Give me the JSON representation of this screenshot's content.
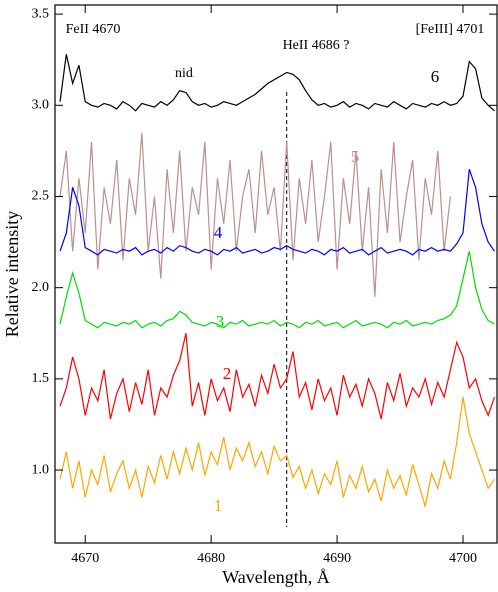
{
  "chart_data": {
    "type": "line",
    "xlabel": "Wavelength, Å",
    "ylabel": "Relative intensity",
    "annotations": [
      "FeII 4670",
      "nid",
      "HeII 4686 ?",
      "[FeIII] 4701"
    ],
    "vline": 4686,
    "xlim": [
      4667.6,
      4702.7
    ],
    "ylim": [
      0.6,
      3.55
    ],
    "xticks": [
      4670,
      4680,
      4690,
      4700
    ],
    "yticks": [
      {
        "value": 1.0,
        "label": "1.0"
      },
      1.5,
      {
        "value": 2.0,
        "label": "2.0"
      },
      2.5,
      {
        "value": 3.0,
        "label": "3.0"
      },
      3.5
    ],
    "x": [
      4668,
      4668.5,
      4669,
      4669.5,
      4670,
      4670.5,
      4671,
      4671.5,
      4672,
      4672.5,
      4673,
      4673.5,
      4674,
      4674.5,
      4675,
      4675.5,
      4676,
      4676.5,
      4677,
      4677.5,
      4678,
      4678.5,
      4679,
      4679.5,
      4680,
      4680.5,
      4681,
      4681.5,
      4682,
      4682.5,
      4683,
      4683.5,
      4684,
      4684.5,
      4685,
      4685.5,
      4686,
      4686.5,
      4687,
      4687.5,
      4688,
      4688.5,
      4689,
      4689.5,
      4690,
      4690.5,
      4691,
      4691.5,
      4692,
      4692.5,
      4693,
      4693.5,
      4694,
      4694.5,
      4695,
      4695.5,
      4696,
      4696.5,
      4697,
      4697.5,
      4698,
      4698.5,
      4699,
      4699.5,
      4700,
      4700.5,
      4701,
      4701.5,
      4702,
      4702.5
    ],
    "series": [
      {
        "name": "6",
        "color": "#000000",
        "values": [
          3.02,
          3.28,
          3.12,
          3.22,
          3.02,
          3.0,
          2.99,
          3.01,
          3.0,
          2.98,
          3.02,
          3.0,
          2.97,
          3.01,
          3.0,
          2.99,
          3.02,
          3.0,
          3.03,
          3.08,
          3.07,
          3.02,
          3.0,
          3.01,
          2.99,
          3.0,
          3.02,
          3.01,
          3.0,
          3.02,
          3.04,
          3.06,
          3.09,
          3.12,
          3.14,
          3.16,
          3.18,
          3.17,
          3.14,
          3.08,
          3.03,
          3.0,
          3.01,
          2.99,
          3.0,
          3.02,
          2.99,
          3.01,
          3.0,
          2.98,
          3.01,
          3.0,
          2.99,
          3.02,
          3.0,
          2.98,
          3.01,
          3.0,
          2.99,
          3.01,
          3.0,
          3.02,
          3.0,
          3.01,
          3.05,
          3.24,
          3.2,
          3.04,
          3.0,
          2.97
        ]
      },
      {
        "name": "5",
        "color": "#bc8f8f",
        "values": [
          2.5,
          2.75,
          2.2,
          2.6,
          2.3,
          2.8,
          2.1,
          2.55,
          2.35,
          2.7,
          2.15,
          2.6,
          2.4,
          2.85,
          2.2,
          2.5,
          2.05,
          2.65,
          2.3,
          2.75,
          2.2,
          2.55,
          2.4,
          2.8,
          2.1,
          2.6,
          2.35,
          2.7,
          2.2,
          2.5,
          2.65,
          2.3,
          2.75,
          2.4,
          2.55,
          2.2,
          2.8,
          2.15,
          2.6,
          2.35,
          2.7,
          2.25,
          2.5,
          2.8,
          2.1,
          2.6,
          2.35,
          2.75,
          2.2,
          2.55,
          1.95,
          2.65,
          2.3,
          2.8,
          2.25,
          2.5,
          2.7,
          2.15,
          2.6,
          2.4,
          2.75,
          2.2,
          2.5,
          null,
          null,
          null,
          null,
          null,
          null,
          null
        ]
      },
      {
        "name": "4",
        "color": "#0000ff",
        "values": [
          2.2,
          2.3,
          2.55,
          2.45,
          2.22,
          2.2,
          2.18,
          2.21,
          2.2,
          2.19,
          2.21,
          2.2,
          2.22,
          2.18,
          2.2,
          2.21,
          2.19,
          2.22,
          2.2,
          2.23,
          2.22,
          2.2,
          2.19,
          2.21,
          2.2,
          2.18,
          2.21,
          2.2,
          2.22,
          2.19,
          2.2,
          2.21,
          2.19,
          2.2,
          2.22,
          2.21,
          2.23,
          2.21,
          2.2,
          2.19,
          2.21,
          2.2,
          2.18,
          2.21,
          2.2,
          2.22,
          2.19,
          2.2,
          2.21,
          2.18,
          2.2,
          2.22,
          2.19,
          2.2,
          2.21,
          2.2,
          2.18,
          2.21,
          2.2,
          2.22,
          2.2,
          2.21,
          2.2,
          2.24,
          2.3,
          2.65,
          2.55,
          2.35,
          2.25,
          2.2
        ]
      },
      {
        "name": "3",
        "color": "#00dd00",
        "values": [
          1.8,
          1.95,
          2.08,
          1.97,
          1.82,
          1.8,
          1.78,
          1.81,
          1.8,
          1.79,
          1.81,
          1.8,
          1.82,
          1.78,
          1.8,
          1.81,
          1.79,
          1.82,
          1.83,
          1.87,
          1.85,
          1.81,
          1.8,
          1.79,
          1.81,
          1.8,
          1.78,
          1.81,
          1.8,
          1.82,
          1.79,
          1.8,
          1.81,
          1.8,
          1.82,
          1.79,
          1.81,
          1.8,
          1.78,
          1.81,
          1.8,
          1.82,
          1.79,
          1.8,
          1.81,
          1.78,
          1.8,
          1.82,
          1.79,
          1.8,
          1.81,
          1.8,
          1.78,
          1.81,
          1.8,
          1.82,
          1.79,
          1.8,
          1.81,
          1.8,
          1.82,
          1.83,
          1.85,
          1.9,
          2.05,
          2.2,
          2.0,
          1.88,
          1.82,
          1.8
        ]
      },
      {
        "name": "2",
        "color": "#ff0000",
        "values": [
          1.35,
          1.45,
          1.62,
          1.5,
          1.3,
          1.45,
          1.38,
          1.55,
          1.28,
          1.42,
          1.5,
          1.32,
          1.48,
          1.36,
          1.55,
          1.3,
          1.45,
          1.4,
          1.52,
          1.6,
          1.75,
          1.35,
          1.48,
          1.3,
          1.5,
          1.38,
          1.45,
          1.32,
          1.55,
          1.4,
          1.47,
          1.35,
          1.52,
          1.42,
          1.58,
          1.45,
          1.5,
          1.65,
          1.4,
          1.48,
          1.33,
          1.5,
          1.38,
          1.45,
          1.3,
          1.52,
          1.4,
          1.47,
          1.35,
          1.5,
          1.42,
          1.28,
          1.48,
          1.38,
          1.53,
          1.35,
          1.45,
          1.4,
          1.5,
          1.36,
          1.48,
          1.4,
          1.55,
          1.7,
          1.62,
          1.45,
          1.5,
          1.38,
          1.3,
          1.4
        ]
      },
      {
        "name": "1",
        "color": "#ffa500",
        "values": [
          0.95,
          1.1,
          0.9,
          1.05,
          0.85,
          1.0,
          0.92,
          1.08,
          0.88,
          0.98,
          1.05,
          0.9,
          1.0,
          0.85,
          1.02,
          0.93,
          1.08,
          0.95,
          1.1,
          0.98,
          1.12,
          1.0,
          1.15,
          0.97,
          1.1,
          1.03,
          1.18,
          1.0,
          1.12,
          1.05,
          1.15,
          1.02,
          1.1,
          0.98,
          1.13,
          1.05,
          1.08,
          0.96,
          1.02,
          0.9,
          1.0,
          0.87,
          0.98,
          0.92,
          1.05,
          0.85,
          0.97,
          0.9,
          1.02,
          0.88,
          0.95,
          0.83,
          1.0,
          0.9,
          0.97,
          0.86,
          1.03,
          0.92,
          0.8,
          0.98,
          0.9,
          1.05,
          0.95,
          1.15,
          1.4,
          1.2,
          1.1,
          1.0,
          0.9,
          0.95
        ]
      }
    ]
  }
}
